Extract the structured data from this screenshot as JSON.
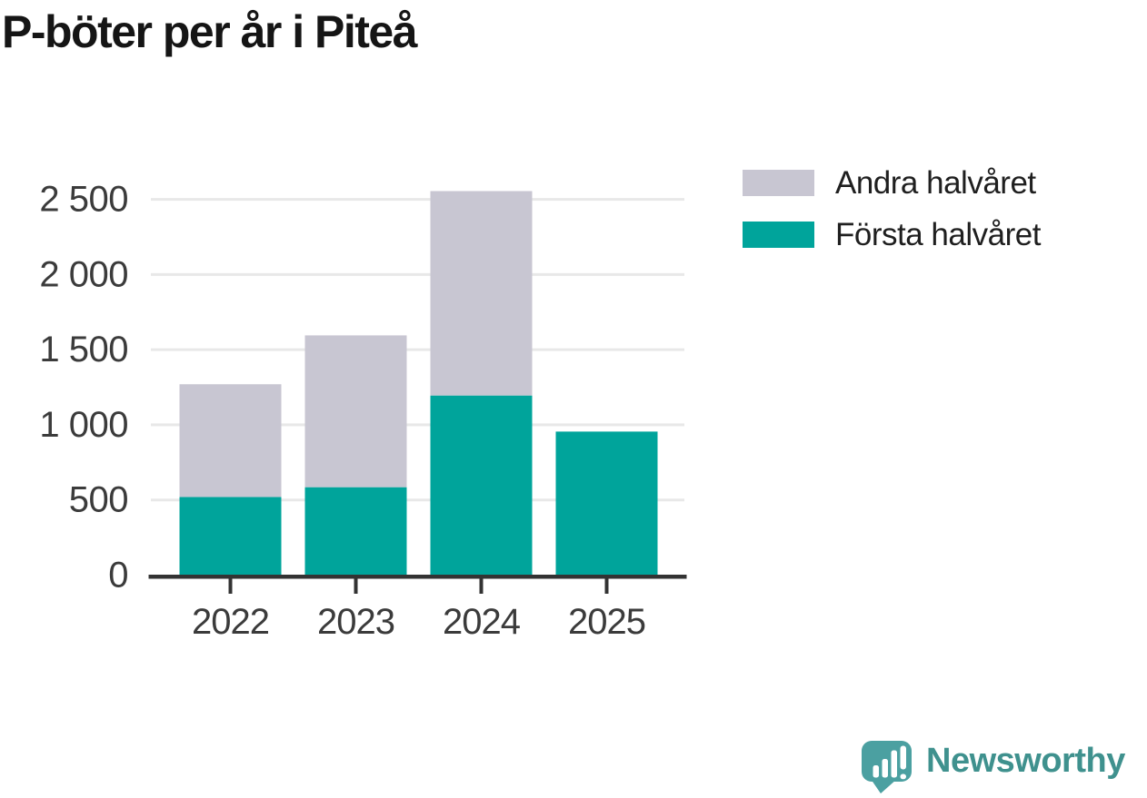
{
  "title": "P-böter per år i Piteå",
  "chart_data": {
    "type": "bar",
    "stacked": true,
    "title": "P-böter per år i Piteå",
    "categories": [
      "2022",
      "2023",
      "2024",
      "2025"
    ],
    "series": [
      {
        "name": "Första halvåret",
        "color": "#00a49b",
        "values": [
          520,
          585,
          1195,
          955
        ]
      },
      {
        "name": "Andra halvåret",
        "color": "#c8c6d2",
        "values": [
          750,
          1010,
          1360,
          0
        ]
      }
    ],
    "totals": [
      1270,
      1595,
      2555,
      955
    ],
    "xlabel": "",
    "ylabel": "",
    "ylim": [
      0,
      2700
    ],
    "yticks": [
      0,
      500,
      1000,
      1500,
      2000,
      2500
    ],
    "ytick_labels": [
      "0",
      "500",
      "1 000",
      "1 500",
      "2 000",
      "2 500"
    ],
    "grid": "horizontal",
    "legend_position": "top-right-outside"
  },
  "legend": {
    "items": [
      {
        "label": "Andra halvåret",
        "color": "#c8c6d2"
      },
      {
        "label": "Första halvåret",
        "color": "#00a49b"
      }
    ]
  },
  "branding": {
    "wordmark": "Newsworthy",
    "logo_icon": "bar-chart-speech-bubble",
    "logo_color": "#4ba0a1",
    "wordmark_color": "#3f918e"
  },
  "colors": {
    "background": "#ffffff",
    "axis": "#333333",
    "gridline": "#e8e8e8",
    "tick_label": "#3b3b3b",
    "title": "#151515",
    "legend_text": "#1f1f1f"
  }
}
